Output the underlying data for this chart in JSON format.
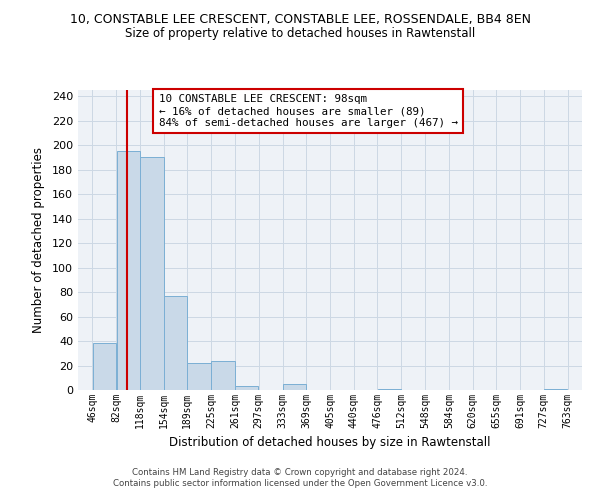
{
  "title": "10, CONSTABLE LEE CRESCENT, CONSTABLE LEE, ROSSENDALE, BB4 8EN",
  "subtitle": "Size of property relative to detached houses in Rawtenstall",
  "xlabel": "Distribution of detached houses by size in Rawtenstall",
  "ylabel": "Number of detached properties",
  "bin_edges": [
    46,
    82,
    118,
    154,
    189,
    225,
    261,
    297,
    333,
    369,
    405,
    440,
    476,
    512,
    548,
    584,
    620,
    655,
    691,
    727,
    763
  ],
  "bar_heights": [
    38,
    195,
    190,
    77,
    22,
    24,
    3,
    0,
    5,
    0,
    0,
    0,
    1,
    0,
    0,
    0,
    0,
    0,
    0,
    1
  ],
  "bar_color": "#c9d9e8",
  "bar_edge_color": "#7bafd4",
  "property_size": 98,
  "vline_color": "#cc0000",
  "ylim": [
    0,
    245
  ],
  "yticks": [
    0,
    20,
    40,
    60,
    80,
    100,
    120,
    140,
    160,
    180,
    200,
    220,
    240
  ],
  "annotation_line1": "10 CONSTABLE LEE CRESCENT: 98sqm",
  "annotation_line2": "← 16% of detached houses are smaller (89)",
  "annotation_line3": "84% of semi-detached houses are larger (467) →",
  "annotation_box_color": "#cc0000",
  "footer_line1": "Contains HM Land Registry data © Crown copyright and database right 2024.",
  "footer_line2": "Contains public sector information licensed under the Open Government Licence v3.0.",
  "bg_color": "#eef2f7",
  "grid_color": "#ccd8e4"
}
